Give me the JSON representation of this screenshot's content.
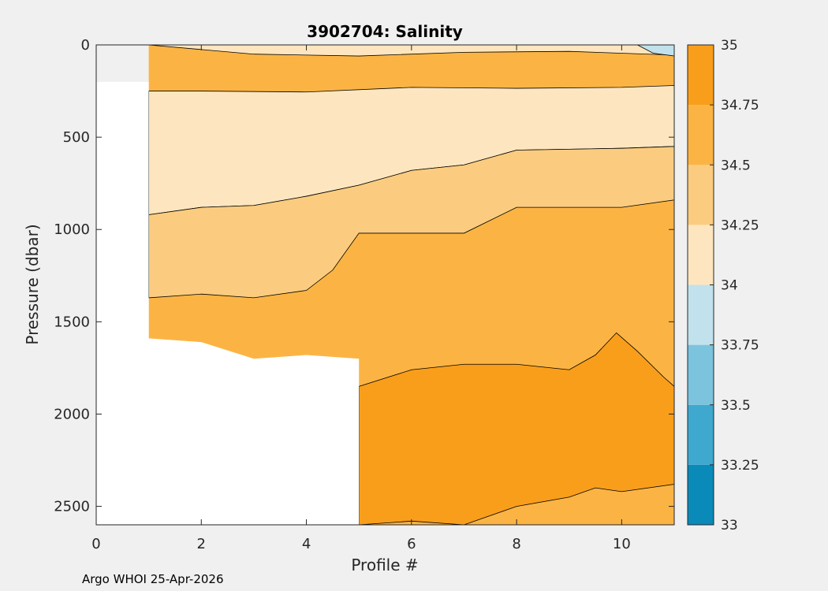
{
  "chart_data": {
    "type": "contour",
    "title": "3902704:  Salinity",
    "xlabel": "Profile #",
    "ylabel": "Pressure (dbar)",
    "xlim": [
      0,
      11
    ],
    "ylim": [
      0,
      2600
    ],
    "y_reversed": true,
    "xticks": [
      0,
      2,
      4,
      6,
      8,
      10
    ],
    "yticks": [
      0,
      500,
      1000,
      1500,
      2000,
      2500
    ],
    "colorbar": {
      "levels": [
        33,
        33.25,
        33.5,
        33.75,
        34,
        34.25,
        34.5,
        34.75,
        35
      ],
      "tick_labels": [
        "33",
        "33.25",
        "33.5",
        "33.75",
        "34",
        "34.25",
        "34.5",
        "34.75",
        "35"
      ],
      "colors": [
        "#0a8ab9",
        "#3fa8cf",
        "#7cc3de",
        "#c1e2ec",
        "#fde6bf",
        "#fbcc7f",
        "#fbb444",
        "#f99e1b"
      ]
    },
    "layers": [
      {
        "band": "34.5-34.75",
        "color": "#fbb444",
        "top": [
          [
            1,
            0
          ],
          [
            11,
            0
          ]
        ],
        "bottom": [
          [
            1,
            2600
          ],
          [
            11,
            2600
          ]
        ]
      },
      {
        "band": "34.0-34.25",
        "color": "#fde6bf",
        "top": [
          [
            1,
            250
          ],
          [
            2,
            250
          ],
          [
            4,
            255
          ],
          [
            6,
            230
          ],
          [
            8,
            235
          ],
          [
            10,
            230
          ],
          [
            11,
            220
          ]
        ],
        "bottom": [
          [
            1,
            920
          ],
          [
            2,
            880
          ],
          [
            3,
            870
          ],
          [
            4,
            820
          ],
          [
            5,
            760
          ],
          [
            6,
            680
          ],
          [
            7,
            650
          ],
          [
            8,
            570
          ],
          [
            9,
            565
          ],
          [
            10,
            560
          ],
          [
            11,
            550
          ]
        ]
      },
      {
        "band": "34.25-34.5",
        "color": "#fbcc7f",
        "top": [
          [
            1,
            920
          ],
          [
            2,
            880
          ],
          [
            3,
            870
          ],
          [
            4,
            820
          ],
          [
            5,
            760
          ],
          [
            6,
            680
          ],
          [
            7,
            650
          ],
          [
            8,
            570
          ],
          [
            9,
            565
          ],
          [
            10,
            560
          ],
          [
            11,
            550
          ]
        ],
        "bottom": [
          [
            1,
            1370
          ],
          [
            2,
            1350
          ],
          [
            3,
            1370
          ],
          [
            4,
            1330
          ],
          [
            4.5,
            1220
          ],
          [
            5,
            1020
          ],
          [
            6,
            1020
          ],
          [
            7,
            1020
          ],
          [
            8,
            880
          ],
          [
            9,
            880
          ],
          [
            10,
            880
          ],
          [
            11,
            840
          ]
        ]
      },
      {
        "band": "34.75-35",
        "color": "#f99e1b",
        "top": [
          [
            5,
            1850
          ],
          [
            6,
            1760
          ],
          [
            7,
            1730
          ],
          [
            8,
            1730
          ],
          [
            9,
            1760
          ],
          [
            9.5,
            1680
          ],
          [
            9.9,
            1560
          ],
          [
            10.3,
            1660
          ],
          [
            10.8,
            1800
          ],
          [
            11,
            1850
          ]
        ],
        "bottom": [
          [
            5,
            2600
          ],
          [
            6,
            2580
          ],
          [
            7,
            2600
          ],
          [
            8,
            2500
          ],
          [
            9,
            2450
          ],
          [
            9.5,
            2400
          ],
          [
            10,
            2420
          ],
          [
            11,
            2380
          ]
        ]
      },
      {
        "band": "34.0-34.25",
        "color": "#fde6bf",
        "top": [
          [
            1,
            0
          ],
          [
            11,
            0
          ]
        ],
        "bottom": [
          [
            1,
            0
          ],
          [
            3,
            50
          ],
          [
            5,
            60
          ],
          [
            7,
            40
          ],
          [
            9,
            35
          ],
          [
            11,
            55
          ]
        ]
      },
      {
        "band": "33.75-34",
        "color": "#c1e2ec",
        "top": [
          [
            10.3,
            0
          ],
          [
            11,
            0
          ]
        ],
        "bottom": [
          [
            10.3,
            0
          ],
          [
            10.6,
            45
          ],
          [
            11,
            60
          ]
        ]
      }
    ],
    "white_mask": [
      [
        0,
        200
      ],
      [
        1,
        200
      ],
      [
        1,
        1590
      ],
      [
        2,
        1610
      ],
      [
        3,
        1700
      ],
      [
        4,
        1680
      ],
      [
        5,
        1700
      ],
      [
        5,
        2600
      ],
      [
        0,
        2600
      ]
    ],
    "footnote": "Argo WHOI 25-Apr-2026"
  }
}
